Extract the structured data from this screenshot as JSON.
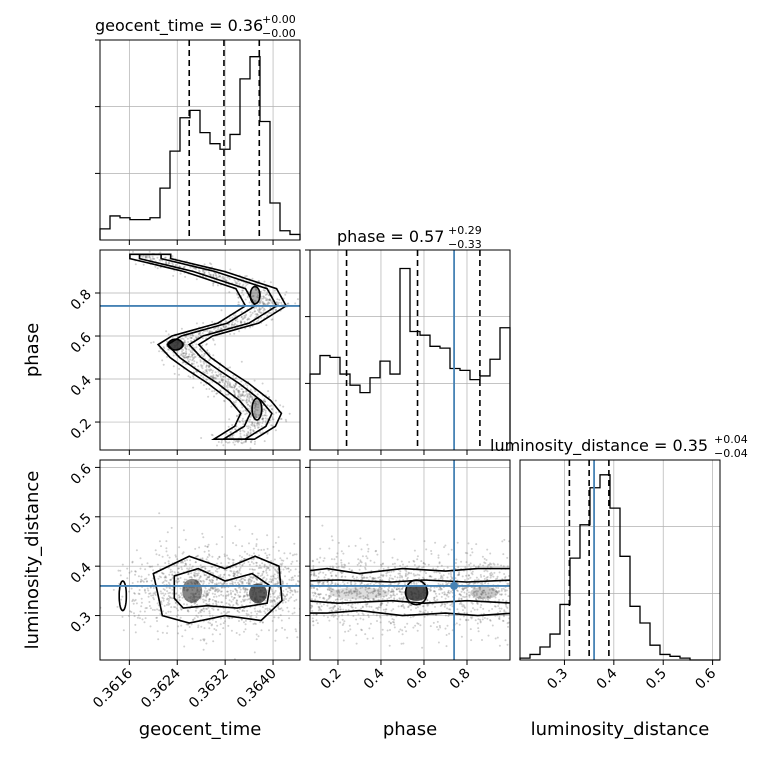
{
  "chart_data": {
    "type": "corner",
    "parameters": [
      "geocent_time",
      "phase",
      "luminosity_distance"
    ],
    "axis_labels": {
      "x": [
        "geocent_time",
        "phase",
        "luminosity_distance"
      ],
      "y": [
        "",
        "phase",
        "luminosity_distance"
      ]
    },
    "titles": [
      {
        "param": "geocent_time",
        "text": "geocent_time = 0.36",
        "plus": "+0.00",
        "minus": "−0.00"
      },
      {
        "param": "phase",
        "text": "phase = 0.57",
        "plus": "+0.29",
        "minus": "−0.33"
      },
      {
        "param": "luminosity_distance",
        "text": "luminosity_distance = 0.35",
        "plus": "+0.04",
        "minus": "−0.04"
      }
    ],
    "ranges": {
      "geocent_time": [
        0.36111,
        0.36445
      ],
      "phase": [
        0.07,
        1.0
      ],
      "luminosity_distance": [
        0.21,
        0.615
      ]
    },
    "ticks": {
      "geocent_time": {
        "values": [
          0.3616,
          0.3624,
          0.3632,
          0.364
        ],
        "labels": [
          "0.3616",
          "0.3624",
          "0.3632",
          "0.3640"
        ]
      },
      "phase": {
        "values": [
          0.2,
          0.4,
          0.6,
          0.8
        ],
        "labels": [
          "0.2",
          "0.4",
          "0.6",
          "0.8"
        ]
      },
      "luminosity_distance": {
        "values": [
          0.3,
          0.4,
          0.5,
          0.6
        ],
        "labels": [
          "0.3",
          "0.4",
          "0.5",
          "0.6"
        ]
      }
    },
    "truths": {
      "phase": 0.74,
      "luminosity_distance": 0.36
    },
    "quantiles": {
      "geocent_time": [
        0.3626,
        0.36318,
        0.36377
      ],
      "phase": [
        0.24,
        0.57,
        0.86
      ],
      "luminosity_distance": [
        0.31,
        0.35,
        0.39
      ]
    },
    "marginals": {
      "geocent_time": [
        0.06,
        0.13,
        0.12,
        0.11,
        0.11,
        0.12,
        0.28,
        0.48,
        0.66,
        0.7,
        0.58,
        0.52,
        0.49,
        0.57,
        0.87,
        0.99,
        0.64,
        0.2,
        0.05,
        0.03
      ],
      "phase": [
        0.41,
        0.51,
        0.5,
        0.41,
        0.35,
        0.31,
        0.39,
        0.48,
        0.41,
        0.98,
        0.64,
        0.62,
        0.56,
        0.55,
        0.44,
        0.43,
        0.38,
        0.4,
        0.49,
        0.66
      ],
      "luminosity_distance": [
        0.01,
        0.03,
        0.07,
        0.14,
        0.3,
        0.55,
        0.73,
        0.93,
        1.0,
        0.82,
        0.56,
        0.29,
        0.2,
        0.08,
        0.03,
        0.02,
        0.01,
        0.0,
        0.0,
        0.0
      ]
    },
    "grid": true,
    "colors": {
      "truth": "#4682b4",
      "hist": "#000000",
      "points": "#6e6e6e"
    }
  }
}
